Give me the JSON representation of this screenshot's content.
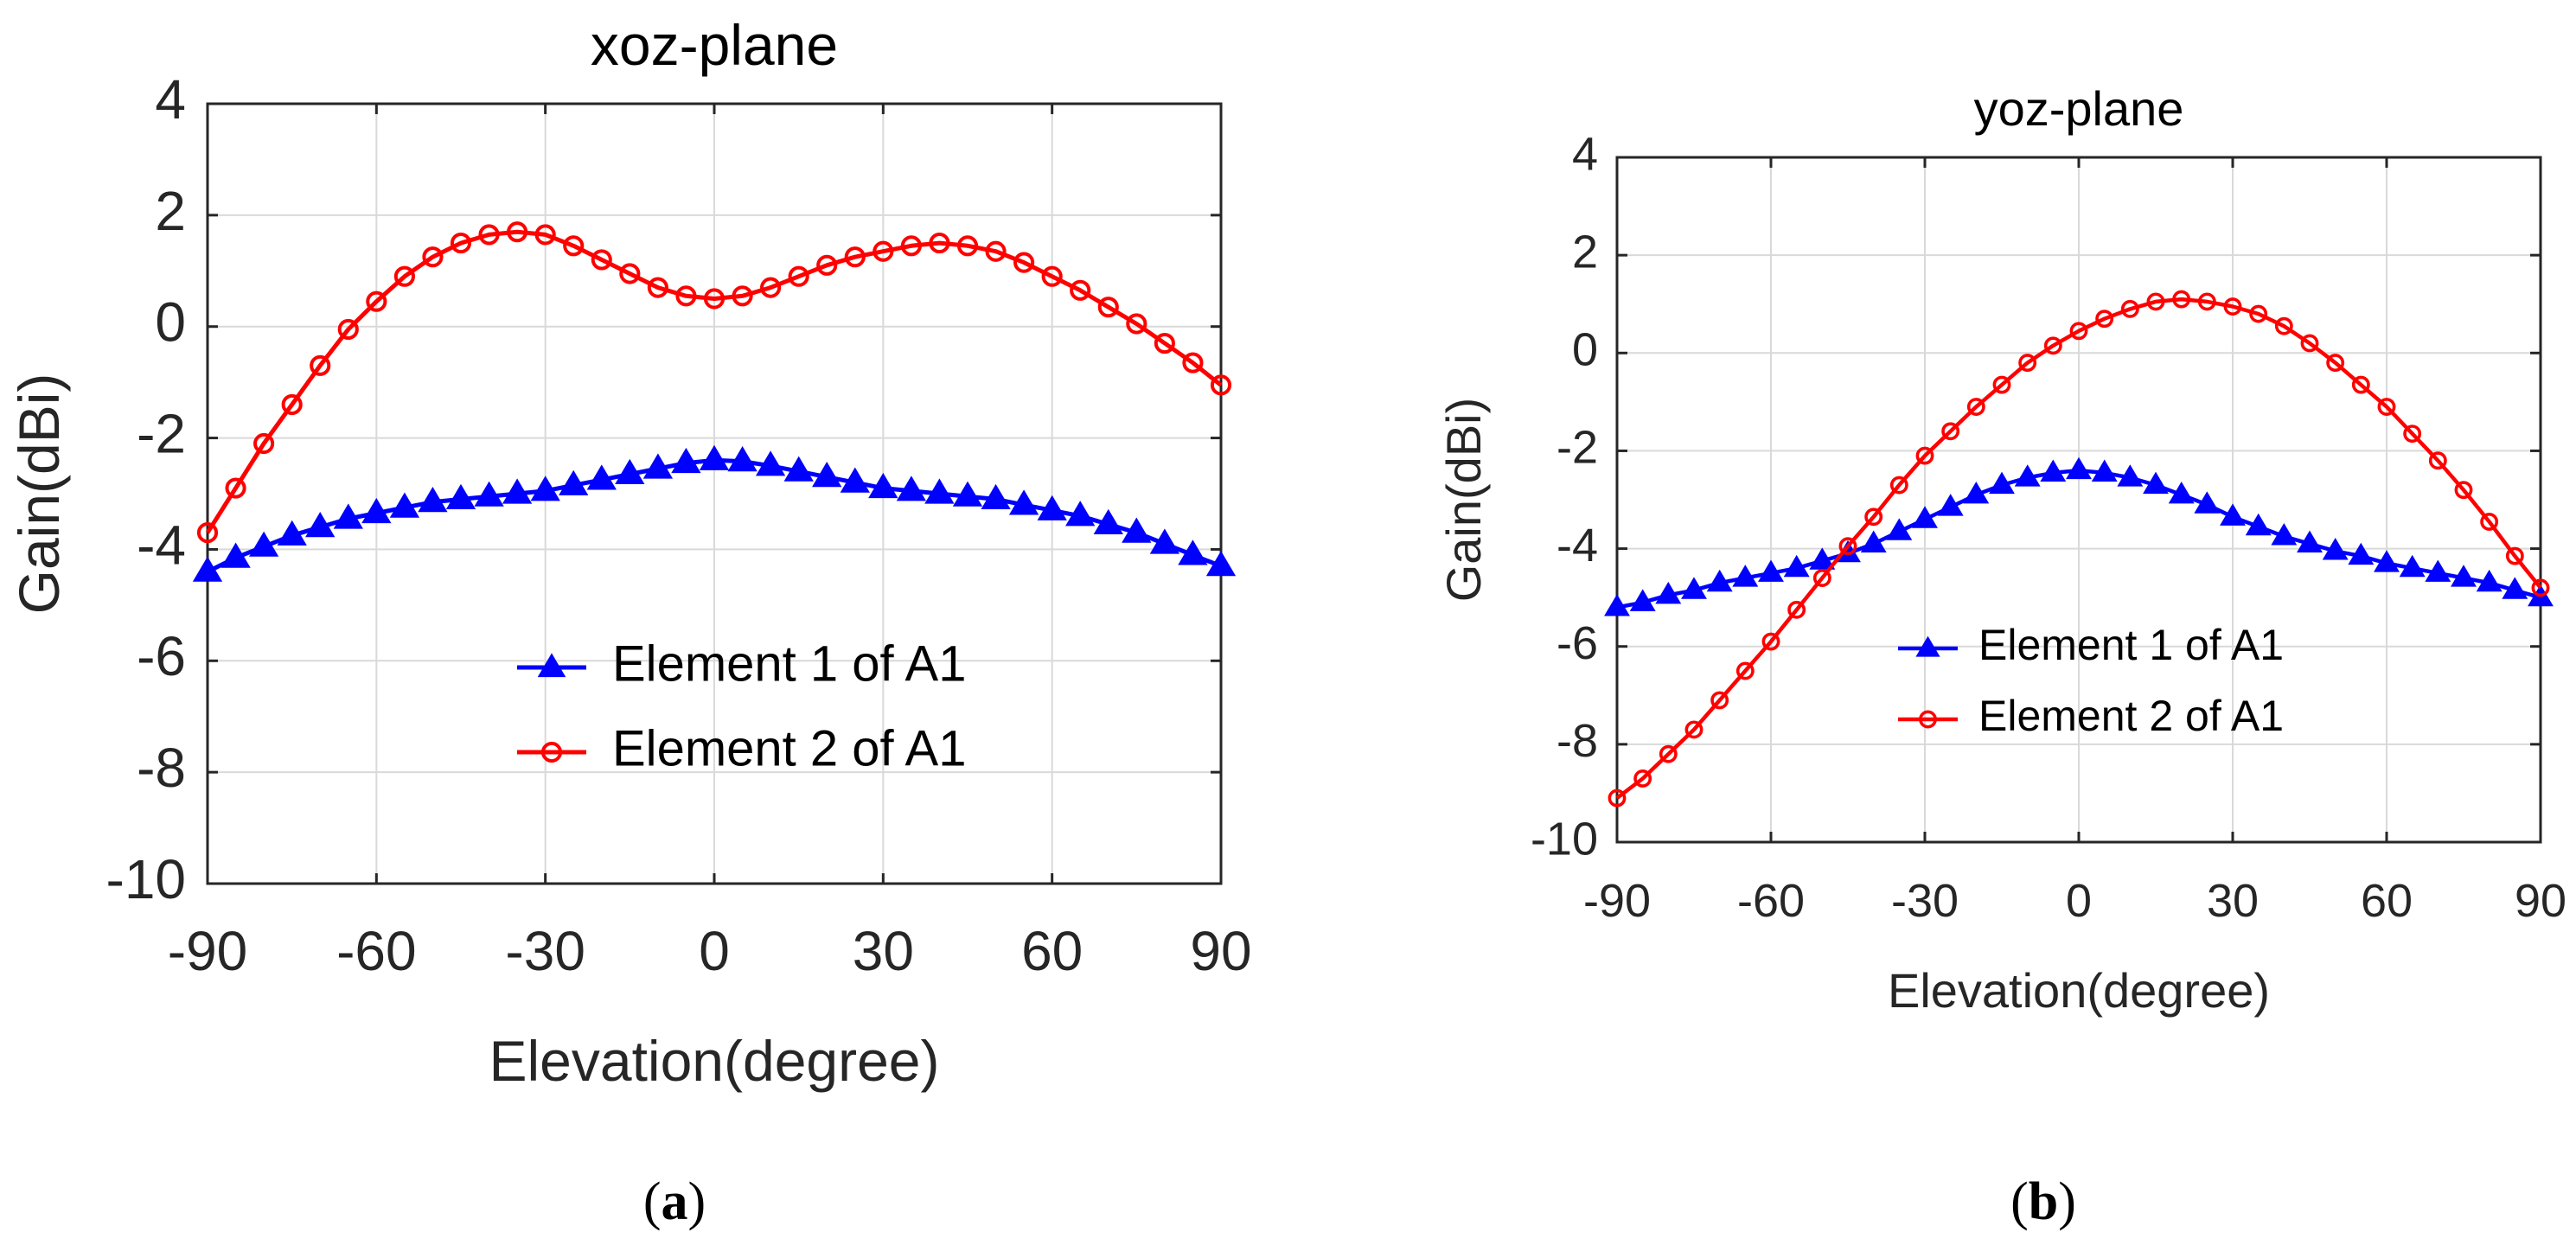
{
  "colors": {
    "element1": "#0000ff",
    "element2": "#ff0000",
    "grid": "#d9d9d9",
    "axis": "#262626"
  },
  "chart_data": [
    {
      "type": "line",
      "title": "xoz-plane",
      "xlabel": "Elevation(degree)",
      "ylabel": "Gain(dBi)",
      "caption": "(a)",
      "xlim": [
        -90,
        90
      ],
      "ylim": [
        -10,
        4
      ],
      "xticks": [
        -90,
        -60,
        -30,
        0,
        30,
        60,
        90
      ],
      "yticks": [
        -10,
        -8,
        -6,
        -4,
        -2,
        0,
        2,
        4
      ],
      "grid": true,
      "legend_position": "lower-center",
      "x": [
        -90,
        -85,
        -80,
        -75,
        -70,
        -65,
        -60,
        -55,
        -50,
        -45,
        -40,
        -35,
        -30,
        -25,
        -20,
        -15,
        -10,
        -5,
        0,
        5,
        10,
        15,
        20,
        25,
        30,
        35,
        40,
        45,
        50,
        55,
        60,
        65,
        70,
        75,
        80,
        85,
        90
      ],
      "series": [
        {
          "name": "Element 1 of A1",
          "marker": "triangle",
          "color_key": "element1",
          "values": [
            -4.4,
            -4.15,
            -3.95,
            -3.75,
            -3.6,
            -3.45,
            -3.35,
            -3.25,
            -3.15,
            -3.1,
            -3.05,
            -3.0,
            -2.95,
            -2.85,
            -2.75,
            -2.65,
            -2.55,
            -2.45,
            -2.4,
            -2.42,
            -2.5,
            -2.6,
            -2.7,
            -2.8,
            -2.9,
            -2.95,
            -3.0,
            -3.05,
            -3.1,
            -3.2,
            -3.3,
            -3.4,
            -3.55,
            -3.7,
            -3.9,
            -4.1,
            -4.3
          ]
        },
        {
          "name": "Element 2 of A1",
          "marker": "circle",
          "color_key": "element2",
          "values": [
            -3.7,
            -2.9,
            -2.1,
            -1.4,
            -0.7,
            -0.05,
            0.45,
            0.9,
            1.25,
            1.5,
            1.65,
            1.7,
            1.65,
            1.45,
            1.2,
            0.95,
            0.7,
            0.55,
            0.5,
            0.55,
            0.7,
            0.9,
            1.1,
            1.25,
            1.35,
            1.45,
            1.5,
            1.45,
            1.35,
            1.15,
            0.9,
            0.65,
            0.35,
            0.05,
            -0.3,
            -0.65,
            -1.05
          ]
        }
      ]
    },
    {
      "type": "line",
      "title": "yoz-plane",
      "xlabel": "Elevation(degree)",
      "ylabel": "Gain(dBi)",
      "caption": "(b)",
      "xlim": [
        -90,
        90
      ],
      "ylim": [
        -10,
        4
      ],
      "xticks": [
        -90,
        -60,
        -30,
        0,
        30,
        60,
        90
      ],
      "yticks": [
        -10,
        -8,
        -6,
        -4,
        -2,
        0,
        2,
        4
      ],
      "grid": true,
      "legend_position": "center-right",
      "x": [
        -90,
        -85,
        -80,
        -75,
        -70,
        -65,
        -60,
        -55,
        -50,
        -45,
        -40,
        -35,
        -30,
        -25,
        -20,
        -15,
        -10,
        -5,
        0,
        5,
        10,
        15,
        20,
        25,
        30,
        35,
        40,
        45,
        50,
        55,
        60,
        65,
        70,
        75,
        80,
        85,
        90
      ],
      "series": [
        {
          "name": "Element 1 of A1",
          "marker": "triangle",
          "color_key": "element1",
          "values": [
            -5.2,
            -5.1,
            -4.95,
            -4.85,
            -4.7,
            -4.6,
            -4.5,
            -4.4,
            -4.25,
            -4.1,
            -3.9,
            -3.65,
            -3.4,
            -3.15,
            -2.9,
            -2.7,
            -2.55,
            -2.45,
            -2.4,
            -2.45,
            -2.55,
            -2.7,
            -2.9,
            -3.1,
            -3.35,
            -3.55,
            -3.75,
            -3.9,
            -4.05,
            -4.15,
            -4.3,
            -4.4,
            -4.5,
            -4.6,
            -4.7,
            -4.85,
            -5.0
          ]
        },
        {
          "name": "Element 2 of A1",
          "marker": "circle",
          "color_key": "element2",
          "values": [
            -9.1,
            -8.7,
            -8.2,
            -7.7,
            -7.1,
            -6.5,
            -5.9,
            -5.25,
            -4.6,
            -3.95,
            -3.35,
            -2.7,
            -2.1,
            -1.6,
            -1.1,
            -0.65,
            -0.2,
            0.15,
            0.45,
            0.7,
            0.9,
            1.05,
            1.1,
            1.05,
            0.95,
            0.8,
            0.55,
            0.2,
            -0.2,
            -0.65,
            -1.1,
            -1.65,
            -2.2,
            -2.8,
            -3.45,
            -4.15,
            -4.8
          ]
        }
      ]
    }
  ]
}
